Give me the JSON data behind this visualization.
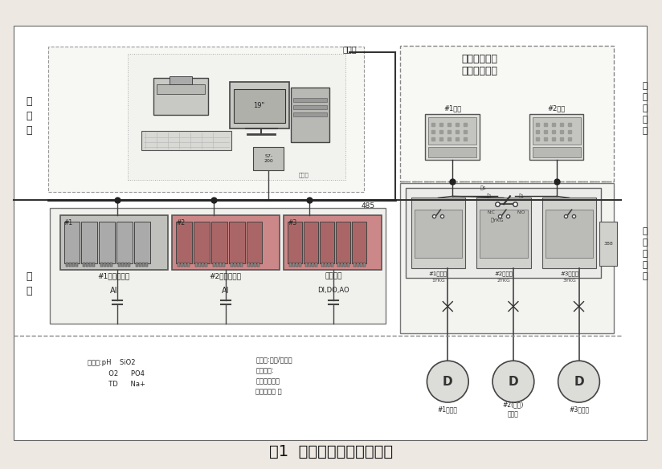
{
  "title": "图1  在线监控及诊断系统图",
  "bg_color": "#ede9e2",
  "left_label_ctrl": "控\n制\n室",
  "left_label_field": "现\n场",
  "right_label_inst": "仪\n表\n取\n样\n间",
  "right_label_ctrl": "现\n场\n控\n制\n柜",
  "system_title_1": "炉水加磷酸盐",
  "system_title_2": "自动控制系统",
  "plc1_label": "#1机数据采集",
  "plc2_label": "#2机数据采集",
  "plc3_label": "主力控制",
  "ai1_label": "AI",
  "ai2_label": "AI",
  "di_label": "DI,DO,AO",
  "worker_station": "工人站",
  "bus_label": "485",
  "meter1_label": "#1磁表",
  "meter2_label": "#2磁表",
  "transformer_labels": [
    "#1变频器",
    "#2变频器",
    "#3变频器"
  ],
  "pump_labels": [
    "#1加药泵",
    "#2(备用)\n加药泵",
    "#3加药泵"
  ],
  "field_analog": "模拟量:pH    SiO2\n          O2      PO4\n          TD      Na+",
  "field_digital": "主力量:泵启/停远控\n状态监视:\n电流状态监视\n变频器监控 等",
  "plc1_color": "#c0c0bc",
  "plc2_color": "#cc8888",
  "plc3_color": "#cc8888",
  "mod1_color": "#aaaaaa",
  "mod2_color": "#aa6666",
  "mod3_color": "#aa6666"
}
